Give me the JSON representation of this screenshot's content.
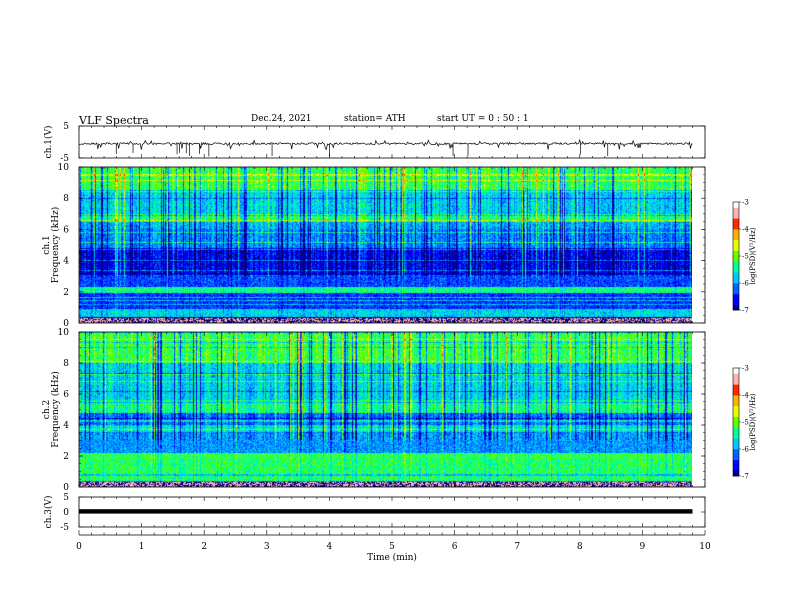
{
  "header": {
    "title": "VLF  Spectra",
    "date": "Dec.24, 2021",
    "station": "station= ATH",
    "start": "start  UT  =    0  : 50 : 1"
  },
  "colors": {
    "spectrum": [
      "#000000",
      "#00007a",
      "#0000ff",
      "#0064ff",
      "#00c8ff",
      "#00ff96",
      "#64ff00",
      "#e6ff00",
      "#ffb400",
      "#ff2800",
      "#ffb4b4",
      "#ffffff"
    ],
    "waveform": "#000000",
    "axis": "#000000"
  },
  "chart_data": [
    {
      "type": "line",
      "name": "ch1-waveform",
      "ylabel": "ch.1(V)",
      "ylim": [
        -5,
        5
      ],
      "yticks": [
        "5",
        "-5"
      ],
      "xlim": [
        0,
        10
      ],
      "baseline": -0.5,
      "spike_min": -2.5,
      "spike_max": 0.8
    },
    {
      "type": "heatmap",
      "name": "ch1-spectrogram",
      "ylabel": "ch.1  Frequency (kHz)",
      "ylim": [
        0,
        10
      ],
      "yticks": [
        "0",
        "2",
        "4",
        "6",
        "8",
        "10"
      ],
      "xlim": [
        0,
        9.8
      ],
      "colorbar": {
        "label": "log(PSD)(V²/Hz)",
        "range": [
          -7,
          -3
        ],
        "ticks": [
          "-3",
          "-4",
          "-5",
          "-6",
          "-7"
        ]
      },
      "bands": [
        {
          "f": [
            0,
            0.4
          ],
          "logpsd": -6.8
        },
        {
          "f": [
            0.4,
            0.9
          ],
          "logpsd": -5.6
        },
        {
          "f": [
            0.9,
            1.9
          ],
          "logpsd": -6.3
        },
        {
          "f": [
            1.9,
            2.3
          ],
          "logpsd": -5.2
        },
        {
          "f": [
            2.3,
            3.2
          ],
          "logpsd": -6.2
        },
        {
          "f": [
            3.2,
            4.8
          ],
          "logpsd": -6.6
        },
        {
          "f": [
            4.8,
            6.0
          ],
          "logpsd": -6.0
        },
        {
          "f": [
            6.0,
            6.5
          ],
          "logpsd": -5.8
        },
        {
          "f": [
            6.5,
            7.0
          ],
          "logpsd": -5.1
        },
        {
          "f": [
            7.0,
            8.5
          ],
          "logpsd": -5.6
        },
        {
          "f": [
            8.5,
            10.0
          ],
          "logpsd": -5.0
        }
      ]
    },
    {
      "type": "heatmap",
      "name": "ch2-spectrogram",
      "ylabel": "ch.2  Frequency (kHz)",
      "ylim": [
        0,
        10
      ],
      "yticks": [
        "0",
        "2",
        "4",
        "6",
        "8",
        "10"
      ],
      "xlim": [
        0,
        9.8
      ],
      "colorbar": {
        "label": "log(PSD)(V²/Hz)",
        "range": [
          -7,
          -3
        ],
        "ticks": [
          "-3",
          "-4",
          "-5",
          "-6",
          "-7"
        ]
      },
      "bands": [
        {
          "f": [
            0,
            0.4
          ],
          "logpsd": -6.0
        },
        {
          "f": [
            0.4,
            1.8
          ],
          "logpsd": -5.1
        },
        {
          "f": [
            1.8,
            2.2
          ],
          "logpsd": -5.0
        },
        {
          "f": [
            2.2,
            3.5
          ],
          "logpsd": -5.9
        },
        {
          "f": [
            3.5,
            4.0
          ],
          "logpsd": -5.5
        },
        {
          "f": [
            4.0,
            4.8
          ],
          "logpsd": -6.1
        },
        {
          "f": [
            4.8,
            5.6
          ],
          "logpsd": -5.2
        },
        {
          "f": [
            5.6,
            8.0
          ],
          "logpsd": -5.6
        },
        {
          "f": [
            8.0,
            10.0
          ],
          "logpsd": -5.0
        }
      ]
    },
    {
      "type": "line",
      "name": "ch3-waveform",
      "ylabel": "ch.3(V)",
      "ylim": [
        -5,
        5
      ],
      "yticks": [
        "5",
        "0",
        "-5"
      ],
      "xlim": [
        0,
        10
      ],
      "baseline": 0.2,
      "xlabel": "Time  (min)",
      "xticks": [
        "0",
        "1",
        "2",
        "3",
        "4",
        "5",
        "6",
        "7",
        "8",
        "9",
        "10"
      ]
    }
  ]
}
